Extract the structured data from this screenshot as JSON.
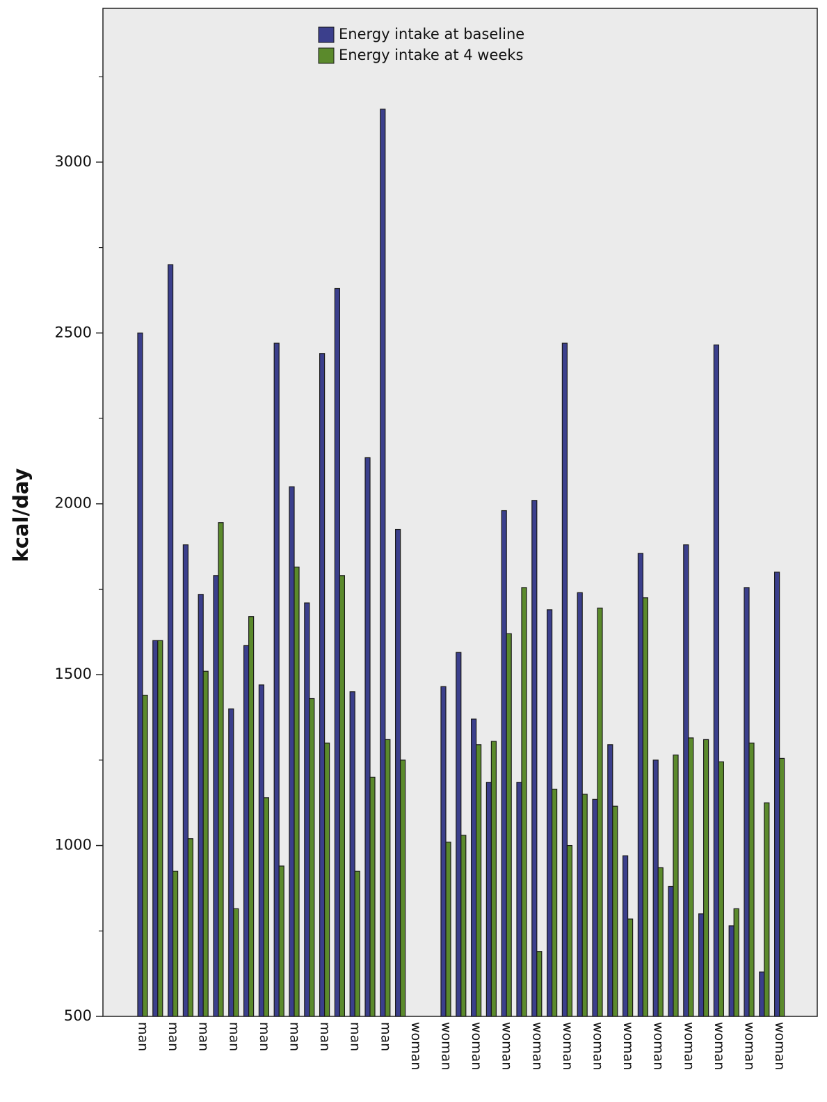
{
  "chart_data": {
    "type": "bar",
    "y_label": "kcal/day",
    "categories": [
      "man",
      null,
      "man",
      null,
      "man",
      null,
      "man",
      null,
      "man",
      null,
      "man",
      null,
      "man",
      null,
      "man",
      null,
      "man",
      null,
      "woman",
      null,
      "woman",
      null,
      "woman",
      null,
      "woman",
      null,
      "woman",
      null,
      "woman",
      null,
      "woman",
      null,
      "woman",
      null,
      "woman",
      null,
      "woman",
      null,
      "woman",
      null,
      "woman",
      null,
      "woman"
    ],
    "series": [
      {
        "name": "Energy intake at baseline",
        "color": "#3b3f8c",
        "values": [
          2500,
          1600,
          2700,
          1880,
          1735,
          1790,
          1400,
          1585,
          1470,
          2470,
          2050,
          1710,
          2440,
          2630,
          1450,
          2135,
          3155,
          1925,
          null,
          null,
          1465,
          1565,
          1370,
          1185,
          1980,
          1185,
          2010,
          1690,
          2470,
          1740,
          1135,
          1295,
          970,
          1855,
          1250,
          880,
          1880,
          800,
          2465,
          765,
          1755,
          630,
          1800
        ]
      },
      {
        "name": "Energy intake at 4 weeks",
        "color": "#5b8a2c",
        "values": [
          1440,
          1600,
          925,
          1020,
          1510,
          1945,
          815,
          1670,
          1140,
          940,
          1815,
          1430,
          1300,
          1790,
          925,
          1200,
          1310,
          1250,
          null,
          null,
          1010,
          1030,
          1295,
          1305,
          1620,
          1755,
          690,
          1165,
          1000,
          1150,
          1695,
          1115,
          785,
          1725,
          935,
          1265,
          1315,
          1310,
          1245,
          815,
          1300,
          1125,
          1255
        ]
      }
    ],
    "ylim": [
      500,
      3450
    ],
    "yticks": [
      500,
      1000,
      1500,
      2000,
      2500,
      3000
    ],
    "yminorticks": [
      750,
      1250,
      1750,
      2250,
      2750,
      3250
    ],
    "legend": "top"
  }
}
